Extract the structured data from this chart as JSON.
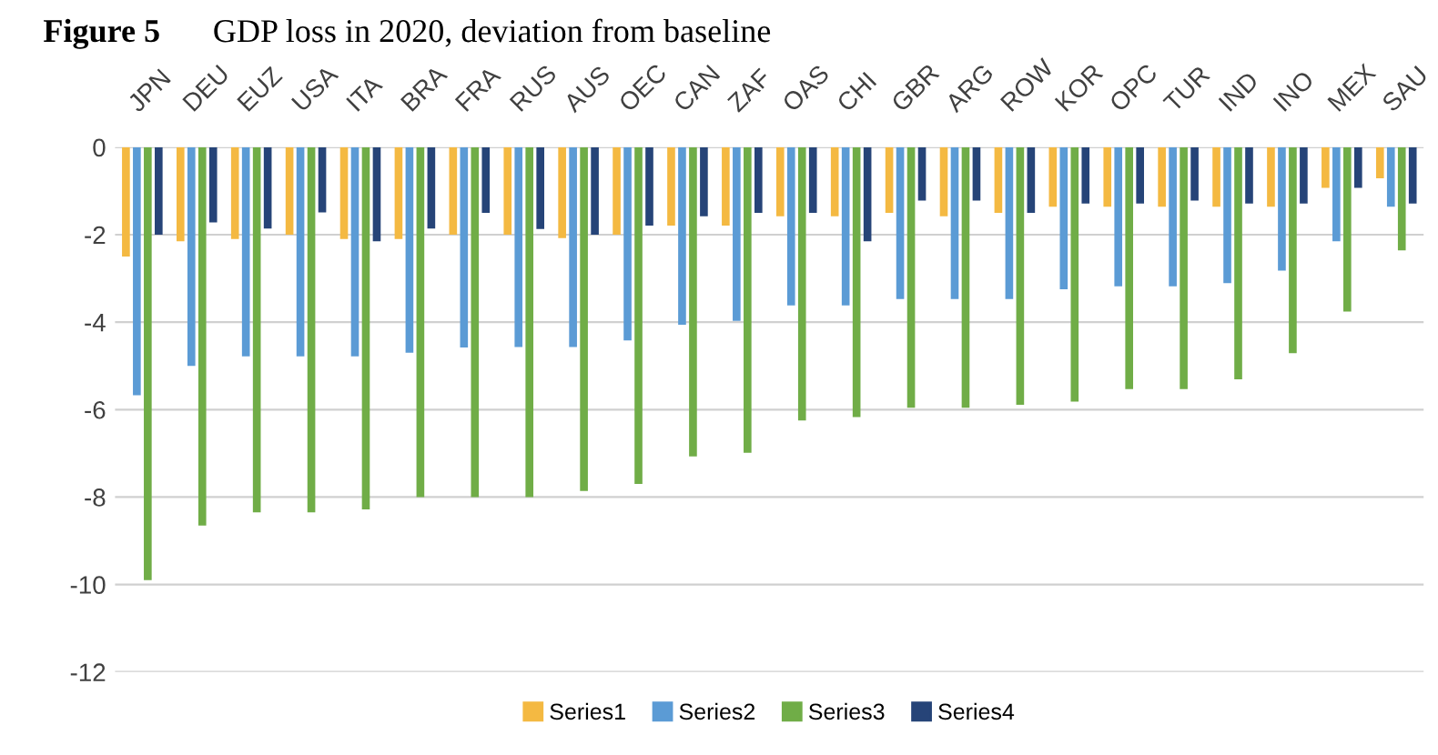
{
  "chart_data": {
    "type": "bar",
    "title": "Figure 5",
    "subtitle": "GDP loss in 2020, deviation from baseline",
    "categories": [
      "JPN",
      "DEU",
      "EUZ",
      "USA",
      "ITA",
      "BRA",
      "FRA",
      "RUS",
      "AUS",
      "OEC",
      "CAN",
      "ZAF",
      "OAS",
      "CHI",
      "GBR",
      "ARG",
      "ROW",
      "KOR",
      "OPC",
      "TUR",
      "IND",
      "INO",
      "MEX",
      "SAU"
    ],
    "series": [
      {
        "name": "Series1",
        "color": "#f4b942",
        "values": [
          -2.5,
          -2.15,
          -2.1,
          -2.0,
          -2.1,
          -2.1,
          -2.0,
          -2.0,
          -2.08,
          -2.0,
          -1.79,
          -1.79,
          -1.58,
          -1.58,
          -1.5,
          -1.58,
          -1.5,
          -1.36,
          -1.36,
          -1.36,
          -1.36,
          -1.36,
          -0.93,
          -0.71
        ]
      },
      {
        "name": "Series2",
        "color": "#5b9bd5",
        "values": [
          -5.67,
          -5.0,
          -4.78,
          -4.78,
          -4.78,
          -4.7,
          -4.58,
          -4.57,
          -4.57,
          -4.42,
          -4.06,
          -3.97,
          -3.62,
          -3.62,
          -3.47,
          -3.47,
          -3.47,
          -3.25,
          -3.18,
          -3.18,
          -3.11,
          -2.82,
          -2.15,
          -1.36
        ]
      },
      {
        "name": "Series3",
        "color": "#70ad47",
        "values": [
          -9.9,
          -8.65,
          -8.35,
          -8.35,
          -8.28,
          -8.0,
          -8.0,
          -8.0,
          -7.86,
          -7.7,
          -7.07,
          -6.99,
          -6.25,
          -6.17,
          -5.96,
          -5.96,
          -5.89,
          -5.82,
          -5.53,
          -5.53,
          -5.31,
          -4.71,
          -3.76,
          -2.36
        ]
      },
      {
        "name": "Series4",
        "color": "#264478",
        "values": [
          -2.0,
          -1.72,
          -1.86,
          -1.49,
          -2.15,
          -1.86,
          -1.5,
          -1.87,
          -2.0,
          -1.79,
          -1.58,
          -1.5,
          -1.5,
          -2.15,
          -1.22,
          -1.22,
          -1.5,
          -1.29,
          -1.29,
          -1.22,
          -1.29,
          -1.29,
          -0.93,
          -1.29
        ]
      }
    ],
    "ylim": [
      -12,
      0
    ],
    "yticks": [
      0,
      -2,
      -4,
      -6,
      -8,
      -10,
      -12
    ],
    "grid": "y",
    "legend": "bottom"
  }
}
